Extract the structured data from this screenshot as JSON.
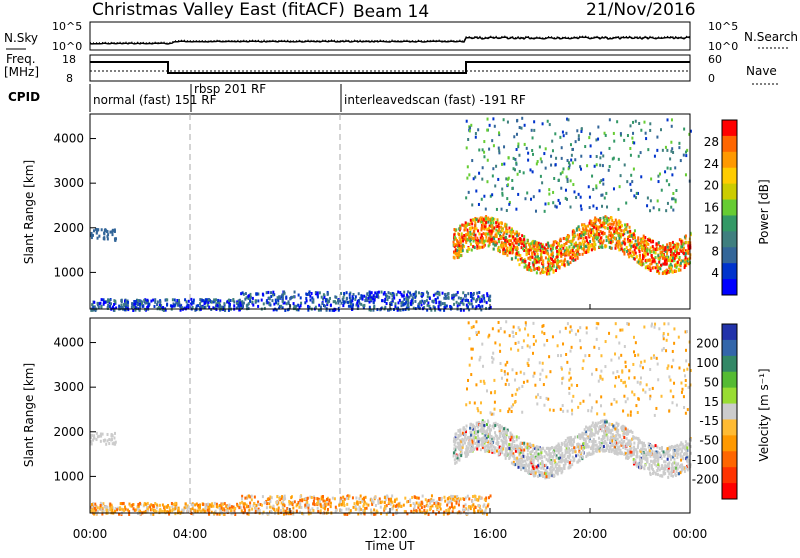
{
  "header": {
    "site": "Christmas Valley East (fitACF)",
    "beam": "Beam 14",
    "date": "21/Nov/2016"
  },
  "noise_panel": {
    "left_label": "N.Sky",
    "right_label": "N.Search",
    "left_ticks": [
      "10^5",
      "10^0"
    ],
    "right_ticks": [
      "10^5",
      "10^0"
    ]
  },
  "freq_panel": {
    "left_label_line1": "Freq.",
    "left_label_line2": "[MHz]",
    "left_ticks": [
      "18",
      "8"
    ],
    "right_label": "Nave",
    "right_ticks": [
      "60",
      "0"
    ]
  },
  "cpid": {
    "label": "CPID",
    "segments": [
      {
        "name": "normal (fast) 151 RF",
        "start": 0
      },
      {
        "name": "rbsp 201 RF",
        "start": 4
      },
      {
        "name": "interleavedscan (fast) -191 RF",
        "start": 10
      }
    ]
  },
  "chart_data": [
    {
      "type": "heatmap",
      "panel": "power",
      "ylabel": "Slant Range [km]",
      "xlabel": "",
      "ylim": [
        180,
        4550
      ],
      "xlim": [
        0,
        24
      ],
      "yticks": [
        "1000",
        "2000",
        "3000",
        "4000"
      ],
      "colorbar": {
        "label": "Power [dB]",
        "ticks": [
          "28",
          "24",
          "20",
          "16",
          "12",
          "8",
          "4"
        ],
        "colors": [
          "#ff0000",
          "#ff6600",
          "#ff9900",
          "#ffcc00",
          "#cccc00",
          "#66cc33",
          "#339966",
          "#3f7f7f",
          "#336699",
          "#0033cc",
          "#0000ff"
        ]
      },
      "features": [
        {
          "name": "ionospheric scatter band",
          "start_h": 14.5,
          "end_h": 24,
          "range_min_km": 1100,
          "range_max_km": 2300
        },
        {
          "name": "ground scatter",
          "start_h": 0,
          "end_h": 16,
          "range_min_km": 180,
          "range_max_km": 600
        }
      ]
    },
    {
      "type": "heatmap",
      "panel": "velocity",
      "ylabel": "Slant Range [km]",
      "xlabel": "Time UT",
      "ylim": [
        180,
        4550
      ],
      "xlim": [
        0,
        24
      ],
      "yticks": [
        "1000",
        "2000",
        "3000",
        "4000"
      ],
      "xticks": [
        "00:00",
        "04:00",
        "08:00",
        "12:00",
        "16:00",
        "20:00",
        "00:00"
      ],
      "colorbar": {
        "label": "Velocity [m s⁻¹]",
        "ticks": [
          "200",
          "100",
          "50",
          "15",
          "-15",
          "-50",
          "-100",
          "-200"
        ],
        "colors": [
          "#2233aa",
          "#3366aa",
          "#338866",
          "#55bb33",
          "#99dd33",
          "#cccccc",
          "#ffbb33",
          "#ff9900",
          "#ff6600",
          "#ff3300",
          "#ff0000"
        ]
      },
      "features": [
        {
          "name": "ionospheric scatter band",
          "start_h": 14.5,
          "end_h": 24,
          "range_min_km": 1500,
          "range_max_km": 2300,
          "velocity": "low (grey)"
        },
        {
          "name": "near-range scatter",
          "start_h": 0,
          "end_h": 16,
          "range_min_km": 180,
          "range_max_km": 600,
          "velocity": "-50 (orange)"
        }
      ]
    }
  ]
}
